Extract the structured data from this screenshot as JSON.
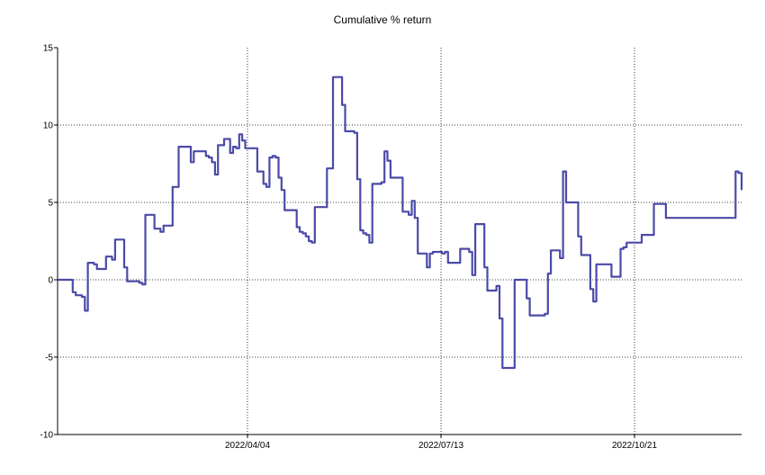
{
  "chart_data": {
    "type": "line",
    "title": "Cumulative % return",
    "xlabel": "",
    "ylabel": "",
    "ylim": [
      -10,
      15
    ],
    "yticks": [
      -10,
      -5,
      0,
      5,
      10,
      15
    ],
    "xticks": [
      "2022/04/04",
      "2022/07/13",
      "2022/10/21"
    ],
    "grid": true,
    "legend": "none",
    "line_color": "#4A4AA8",
    "series": [
      {
        "values": [
          0,
          0,
          0,
          0,
          0,
          -0.8,
          -1.0,
          -1.0,
          -1.1,
          -2.0,
          1.1,
          1.1,
          1.0,
          0.7,
          0.7,
          0.7,
          1.5,
          1.5,
          1.3,
          2.6,
          2.6,
          2.6,
          0.8,
          -0.1,
          -0.1,
          -0.1,
          -0.1,
          -0.2,
          -0.3,
          4.2,
          4.2,
          4.2,
          3.3,
          3.3,
          3.1,
          3.5,
          3.5,
          3.5,
          6.0,
          6.0,
          8.6,
          8.6,
          8.6,
          8.6,
          7.6,
          8.3,
          8.3,
          8.3,
          8.3,
          8.0,
          7.9,
          7.6,
          6.8,
          8.7,
          8.7,
          9.1,
          9.1,
          8.2,
          8.6,
          8.5,
          9.4,
          9.0,
          8.5,
          8.5,
          8.5,
          8.5,
          7.0,
          7.0,
          6.2,
          6.0,
          7.9,
          8.0,
          7.9,
          6.6,
          5.8,
          4.5,
          4.5,
          4.5,
          4.5,
          3.4,
          3.1,
          3.0,
          2.8,
          2.5,
          2.4,
          4.7,
          4.7,
          4.7,
          4.7,
          7.2,
          7.2,
          13.1,
          13.1,
          13.1,
          11.3,
          9.6,
          9.6,
          9.6,
          9.5,
          6.5,
          3.2,
          3.0,
          2.9,
          2.4,
          6.2,
          6.2,
          6.2,
          6.3,
          8.3,
          7.7,
          6.6,
          6.6,
          6.6,
          6.6,
          4.4,
          4.4,
          4.2,
          5.1,
          4.0,
          1.7,
          1.7,
          1.7,
          0.8,
          1.7,
          1.8,
          1.8,
          1.8,
          1.7,
          1.8,
          1.1,
          1.1,
          1.1,
          1.1,
          2.0,
          2.0,
          2.0,
          1.8,
          0.3,
          3.6,
          3.6,
          3.6,
          0.8,
          -0.7,
          -0.7,
          -0.7,
          -0.4,
          -2.5,
          -5.7,
          -5.7,
          -5.7,
          -5.7,
          0,
          0,
          0,
          0,
          -1.2,
          -2.3,
          -2.3,
          -2.3,
          -2.3,
          -2.3,
          -2.2,
          0.4,
          1.9,
          1.9,
          1.9,
          1.4,
          7.0,
          5.0,
          5.0,
          5.0,
          5.0,
          2.8,
          1.6,
          1.6,
          1.6,
          -0.6,
          -1.4,
          1.0,
          1.0,
          1.0,
          1.0,
          1.0,
          0.2,
          0.2,
          0.2,
          2.0,
          2.1,
          2.4,
          2.4,
          2.4,
          2.4,
          2.4,
          2.9,
          2.9,
          2.9,
          2.9,
          4.9,
          4.9,
          4.9,
          4.9,
          4.0,
          4.0,
          4.0,
          4.0,
          4.0,
          4.0,
          4.0,
          4.0,
          4.0,
          4.0,
          4.0,
          4.0,
          4.0,
          4.0,
          4.0,
          4.0,
          4.0,
          4.0,
          4.0,
          4.0,
          4.0,
          4.0,
          4.0,
          7.0,
          6.9,
          5.8
        ]
      }
    ]
  }
}
